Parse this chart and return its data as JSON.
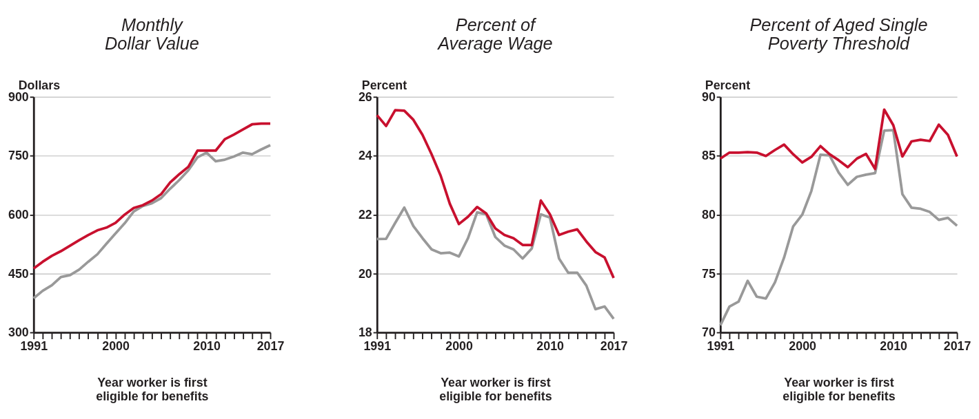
{
  "chart_data": [
    {
      "type": "line",
      "title": "Monthly\nDollar Value",
      "ylabel": "Dollars",
      "xlabel": "Year worker is first\neligible for benefits",
      "x": [
        1991,
        1992,
        1993,
        1994,
        1995,
        1996,
        1997,
        1998,
        1999,
        2000,
        2001,
        2002,
        2003,
        2004,
        2005,
        2006,
        2007,
        2008,
        2009,
        2010,
        2011,
        2012,
        2013,
        2014,
        2015,
        2016,
        2017
      ],
      "series": [
        {
          "color": "#999999",
          "values": [
            387,
            406,
            420,
            441,
            446,
            460,
            480,
            499,
            526,
            552,
            578,
            608,
            622,
            629,
            642,
            666,
            688,
            713,
            746,
            758,
            736,
            740,
            748,
            758,
            754,
            766,
            777
          ]
        },
        {
          "color": "#c8102e",
          "values": [
            463,
            480,
            495,
            507,
            521,
            535,
            548,
            560,
            567,
            579,
            600,
            617,
            624,
            636,
            652,
            682,
            703,
            722,
            763,
            763,
            763,
            792,
            804,
            817,
            830,
            832,
            832
          ]
        }
      ],
      "xlim": [
        1991,
        2017
      ],
      "xticks": [
        1991,
        {
          "value": 1992,
          "label": null
        },
        {
          "value": 1993,
          "label": null
        },
        {
          "value": 1994,
          "label": null
        },
        {
          "value": 1995,
          "label": null
        },
        {
          "value": 1996,
          "label": null
        },
        {
          "value": 1997,
          "label": null
        },
        {
          "value": 1998,
          "label": null
        },
        {
          "value": 1999,
          "label": null
        },
        2000,
        {
          "value": 2001,
          "label": null
        },
        {
          "value": 2002,
          "label": null
        },
        {
          "value": 2003,
          "label": null
        },
        {
          "value": 2004,
          "label": null
        },
        {
          "value": 2005,
          "label": null
        },
        {
          "value": 2006,
          "label": null
        },
        {
          "value": 2007,
          "label": null
        },
        {
          "value": 2008,
          "label": null
        },
        {
          "value": 2009,
          "label": null
        },
        2010,
        {
          "value": 2011,
          "label": null
        },
        {
          "value": 2012,
          "label": null
        },
        {
          "value": 2013,
          "label": null
        },
        {
          "value": 2014,
          "label": null
        },
        {
          "value": 2015,
          "label": null
        },
        {
          "value": 2016,
          "label": null
        },
        2017
      ],
      "ylim": [
        300,
        900
      ],
      "yticks": [
        300,
        450,
        600,
        750,
        900
      ],
      "grid": "y",
      "legend": false,
      "line_style": "solid"
    },
    {
      "type": "line",
      "title": "Percent of\nAverage Wage",
      "ylabel": "Percent",
      "xlabel": "Year worker is first\neligible for benefits",
      "x": [
        1991,
        1992,
        1993,
        1994,
        1995,
        1996,
        1997,
        1998,
        1999,
        2000,
        2001,
        2002,
        2003,
        2004,
        2005,
        2006,
        2007,
        2008,
        2009,
        2010,
        2011,
        2012,
        2013,
        2014,
        2015,
        2016,
        2017
      ],
      "series": [
        {
          "color": "#999999",
          "values": [
            21.17,
            21.18,
            21.72,
            22.24,
            21.61,
            21.2,
            20.82,
            20.69,
            20.71,
            20.58,
            21.2,
            22.08,
            22.01,
            21.24,
            20.95,
            20.82,
            20.51,
            20.85,
            22.01,
            21.9,
            20.51,
            20.03,
            20.03,
            19.59,
            18.79,
            18.88,
            18.46
          ]
        },
        {
          "color": "#c8102e",
          "values": [
            25.38,
            25.01,
            25.55,
            25.53,
            25.22,
            24.71,
            24.05,
            23.32,
            22.37,
            21.68,
            21.93,
            22.26,
            22.04,
            21.53,
            21.31,
            21.2,
            20.97,
            20.97,
            22.48,
            22.01,
            21.31,
            21.42,
            21.5,
            21.09,
            20.73,
            20.55,
            19.85
          ]
        }
      ],
      "xlim": [
        1991,
        2017
      ],
      "xticks": [
        1991,
        {
          "value": 1992,
          "label": null
        },
        {
          "value": 1993,
          "label": null
        },
        {
          "value": 1994,
          "label": null
        },
        {
          "value": 1995,
          "label": null
        },
        {
          "value": 1996,
          "label": null
        },
        {
          "value": 1997,
          "label": null
        },
        {
          "value": 1998,
          "label": null
        },
        {
          "value": 1999,
          "label": null
        },
        2000,
        {
          "value": 2001,
          "label": null
        },
        {
          "value": 2002,
          "label": null
        },
        {
          "value": 2003,
          "label": null
        },
        {
          "value": 2004,
          "label": null
        },
        {
          "value": 2005,
          "label": null
        },
        {
          "value": 2006,
          "label": null
        },
        {
          "value": 2007,
          "label": null
        },
        {
          "value": 2008,
          "label": null
        },
        {
          "value": 2009,
          "label": null
        },
        2010,
        {
          "value": 2011,
          "label": null
        },
        {
          "value": 2012,
          "label": null
        },
        {
          "value": 2013,
          "label": null
        },
        {
          "value": 2014,
          "label": null
        },
        {
          "value": 2015,
          "label": null
        },
        {
          "value": 2016,
          "label": null
        },
        2017
      ],
      "ylim": [
        18,
        26
      ],
      "yticks": [
        18,
        20,
        22,
        24,
        26
      ],
      "grid": "y",
      "legend": false,
      "line_style": "solid"
    },
    {
      "type": "line",
      "title": "Percent of Aged Single\nPoverty Threshold",
      "ylabel": "Percent",
      "xlabel": "Year worker is first\neligible for benefits",
      "x": [
        1991,
        1992,
        1993,
        1994,
        1995,
        1996,
        1997,
        1998,
        1999,
        2000,
        2001,
        2002,
        2003,
        2004,
        2005,
        2006,
        2007,
        2008,
        2009,
        2010,
        2011,
        2012,
        2013,
        2014,
        2015,
        2016,
        2017
      ],
      "series": [
        {
          "color": "#999999",
          "values": [
            70.6,
            72.19,
            72.61,
            74.38,
            73.03,
            72.88,
            74.25,
            76.35,
            79.0,
            80.0,
            82.01,
            85.09,
            85.03,
            83.57,
            82.53,
            83.21,
            83.39,
            83.52,
            87.13,
            87.17,
            81.74,
            80.59,
            80.5,
            80.23,
            79.55,
            79.73,
            79.06
          ]
        },
        {
          "color": "#c8102e",
          "values": [
            84.76,
            85.27,
            85.27,
            85.31,
            85.27,
            84.98,
            85.49,
            85.95,
            85.13,
            84.43,
            84.91,
            85.82,
            85.13,
            84.62,
            84.03,
            84.76,
            85.16,
            83.88,
            88.92,
            87.59,
            84.94,
            86.22,
            86.36,
            86.25,
            87.64,
            86.77,
            84.94
          ]
        }
      ],
      "xlim": [
        1991,
        2017
      ],
      "xticks": [
        1991,
        {
          "value": 1992,
          "label": null
        },
        {
          "value": 1993,
          "label": null
        },
        {
          "value": 1994,
          "label": null
        },
        {
          "value": 1995,
          "label": null
        },
        {
          "value": 1996,
          "label": null
        },
        {
          "value": 1997,
          "label": null
        },
        {
          "value": 1998,
          "label": null
        },
        {
          "value": 1999,
          "label": null
        },
        2000,
        {
          "value": 2001,
          "label": null
        },
        {
          "value": 2002,
          "label": null
        },
        {
          "value": 2003,
          "label": null
        },
        {
          "value": 2004,
          "label": null
        },
        {
          "value": 2005,
          "label": null
        },
        {
          "value": 2006,
          "label": null
        },
        {
          "value": 2007,
          "label": null
        },
        {
          "value": 2008,
          "label": null
        },
        {
          "value": 2009,
          "label": null
        },
        2010,
        {
          "value": 2011,
          "label": null
        },
        {
          "value": 2012,
          "label": null
        },
        {
          "value": 2013,
          "label": null
        },
        {
          "value": 2014,
          "label": null
        },
        {
          "value": 2015,
          "label": null
        },
        {
          "value": 2016,
          "label": null
        },
        2017
      ],
      "ylim": [
        70,
        90
      ],
      "yticks": [
        70,
        75,
        80,
        85,
        90
      ],
      "grid": "y",
      "legend": false,
      "line_style": "solid"
    }
  ]
}
